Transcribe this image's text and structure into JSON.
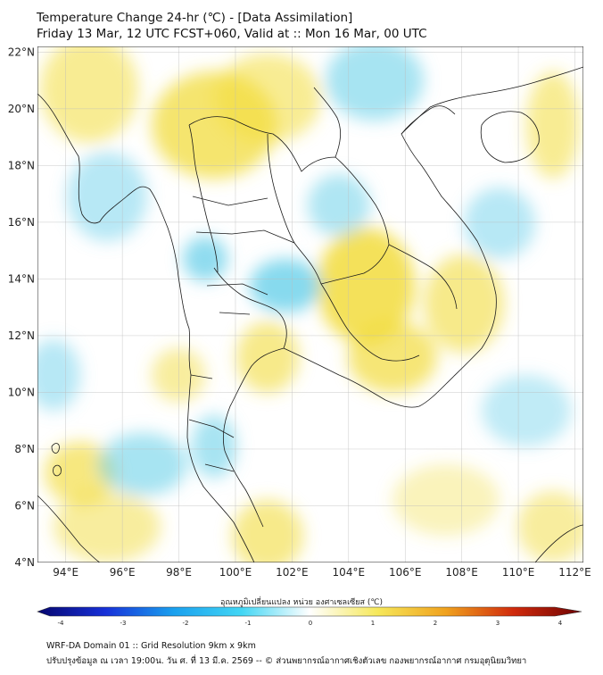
{
  "header": {
    "title_line1": "Temperature Change 24-hr (℃) - [Data Assimilation]",
    "title_line2": "Friday 13 Mar, 12 UTC FCST+060, Valid at :: Mon 16 Mar, 00 UTC"
  },
  "map": {
    "lat_labels": [
      "22°N",
      "20°N",
      "18°N",
      "16°N",
      "14°N",
      "12°N",
      "10°N",
      "8°N",
      "6°N",
      "4°N"
    ],
    "lon_labels": [
      "94°E",
      "96°E",
      "98°E",
      "100°E",
      "102°E",
      "104°E",
      "106°E",
      "108°E",
      "110°E",
      "112°E"
    ],
    "lat_values": [
      22,
      20,
      18,
      16,
      14,
      12,
      10,
      8,
      6,
      4
    ],
    "lon_values": [
      94,
      96,
      98,
      100,
      102,
      104,
      106,
      108,
      110,
      112
    ],
    "extent": {
      "lon_min": 93,
      "lon_max": 112.3,
      "lat_min": 4,
      "lat_max": 22.2
    },
    "field_colors": {
      "warm": "#f2dc3c",
      "cool": "#5fcde8",
      "neutral": "#ffffff"
    }
  },
  "colorbar": {
    "title": "อุณหภูมิเปลี่ยนแปลง หน่วย องศาเซลเซียส (℃)",
    "ticks": [
      "-4",
      "-3",
      "-2",
      "-1",
      "0",
      "1",
      "2",
      "3",
      "4"
    ],
    "tick_values": [
      -4,
      -3,
      -2,
      -1,
      0,
      1,
      2,
      3,
      4
    ],
    "stops": [
      "#06066e",
      "#1730d8",
      "#1aa0ee",
      "#42d6f4",
      "#ffffff",
      "#f6e85a",
      "#f0a21e",
      "#d02a0c",
      "#6e0202"
    ]
  },
  "footer": {
    "line1": "WRF-DA Domain 01 :: Grid Resolution 9km x 9km",
    "line2": "ปรับปรุงข้อมูล ณ เวลา 19:00น. วัน ศ. ที่ 13 มี.ค. 2569 -- © ส่วนพยากรณ์อากาศเชิงตัวเลข กองพยากรณ์อากาศ กรมอุตุนิยมวิทยา"
  }
}
